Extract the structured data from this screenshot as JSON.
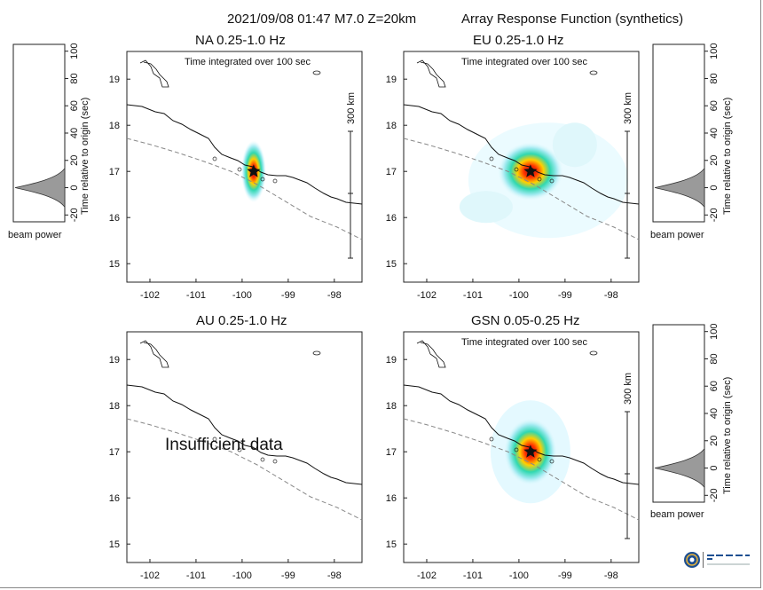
{
  "header": {
    "event": "2021/09/08 01:47  M7.0  Z=20km",
    "subtitle": "Array Response Function (synthetics)"
  },
  "panels": [
    {
      "id": "na",
      "title": "NA  0.25-1.0 Hz",
      "note": "Time integrated over 100 sec",
      "has_data": true,
      "response": "narrow"
    },
    {
      "id": "eu",
      "title": "EU  0.25-1.0 Hz",
      "note": "Time integrated over 100 sec",
      "has_data": true,
      "response": "broad"
    },
    {
      "id": "au",
      "title": "AU  0.25-1.0 Hz",
      "note": "",
      "has_data": false,
      "message": "Insufficient data"
    },
    {
      "id": "gsn",
      "title": "GSN  0.05-0.25 Hz",
      "note": "Time integrated over 100 sec",
      "has_data": true,
      "response": "medium"
    }
  ],
  "map_axes": {
    "lon_ticks": [
      "-102",
      "-101",
      "-100",
      "-99",
      "-98"
    ],
    "lat_ticks": [
      "19",
      "18",
      "17",
      "16",
      "15"
    ],
    "lon_range": [
      -102.5,
      -97.4
    ],
    "lat_range": [
      14.6,
      19.6
    ]
  },
  "epicenter": {
    "lon": -99.75,
    "lat": 17.0
  },
  "scale_bar": {
    "label": "300 km"
  },
  "beam_panels": {
    "ticks": [
      "100",
      "80",
      "60",
      "40",
      "20",
      "0",
      "-20"
    ],
    "ylabel": "Time relative to origin (sec)",
    "xlabel": "beam power",
    "range": [
      -25,
      105
    ],
    "peak_time": 0
  },
  "colors": {
    "coast": "#111111",
    "trench": "#888888",
    "star": "#111111"
  }
}
